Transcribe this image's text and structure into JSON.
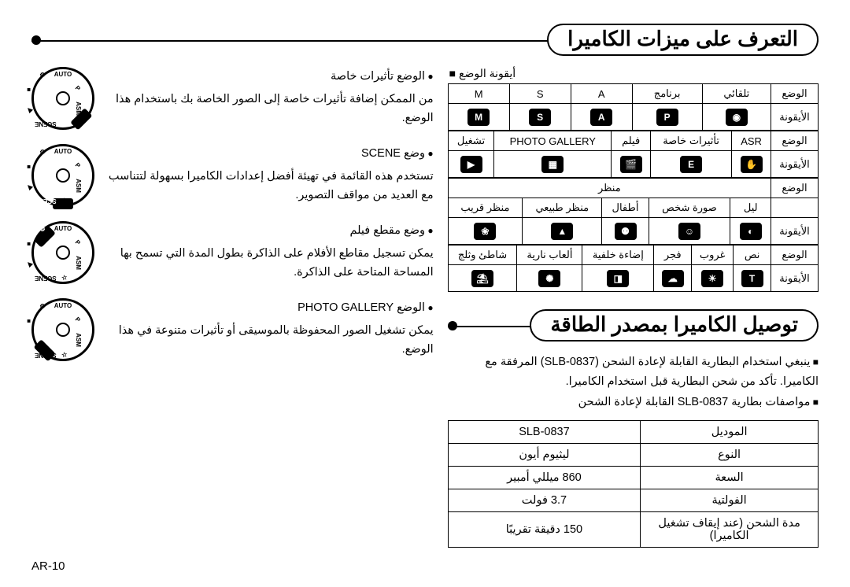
{
  "page_number": "AR-10",
  "section1": {
    "title": "التعرف على ميزات الكاميرا",
    "ref_label": "أيقونة الوضع",
    "dial_labels": [
      "AUTO",
      "P",
      "ASM",
      "☆",
      "SCENE",
      "▶",
      "■",
      "⚙"
    ],
    "modes": [
      {
        "title": "الوضع تأثيرات خاصة",
        "body": "من الممكن إضافة تأثيرات خاصة إلى الصور الخاصة بك باستخدام هذا الوضع.",
        "highlight_idx": 3
      },
      {
        "title": "وضع SCENE",
        "body": "تستخدم هذه القائمة في تهيئة أفضل إعدادات الكاميرا بسهولة لتتناسب مع العديد من مواقف التصوير.",
        "highlight_idx": 4
      },
      {
        "title": "وضع مقطع فيلم",
        "body": "يمكن تسجيل مقاطع الأفلام على الذاكرة بطول المدة التي تسمح بها المساحة المتاحة على الذاكرة.",
        "highlight_idx": 7
      },
      {
        "title": "الوضع PHOTO GALLERY",
        "body": "يمكن تشغيل الصور المحفوظة بالموسيقى أو تأثيرات متنوعة في هذا الوضع.",
        "highlight_idx": 5
      }
    ],
    "ref_table": {
      "row_labels": [
        "الوضع",
        "الأيقونة"
      ],
      "groups": [
        {
          "modes": [
            "تلقائي",
            "برنامج",
            "A",
            "S",
            "M"
          ],
          "icons": [
            "◉",
            "P",
            "A",
            "S",
            "M"
          ]
        },
        {
          "modes": [
            "ASR",
            "تأثيرات خاصة",
            "فيلم",
            "PHOTO GALLERY",
            "تشغيل"
          ],
          "icons": [
            "✋",
            "E",
            "🎬",
            "▦",
            "▶"
          ]
        },
        {
          "span_label": "منظر",
          "modes": [
            "ليل",
            "صورة شخص",
            "أطفال",
            "منظر طبيعي",
            "منظر قريب"
          ],
          "icons": [
            "◐",
            "☺",
            "⚉",
            "▲",
            "❀"
          ]
        },
        {
          "modes": [
            "نص",
            "غروب",
            "فجر",
            "إضاءة خلفية",
            "ألعاب نارية",
            "شاطئ وثلج"
          ],
          "icons": [
            "T",
            "☀",
            "☁",
            "◨",
            "✺",
            "⛱"
          ]
        }
      ]
    }
  },
  "section2": {
    "title": "توصيل الكاميرا بمصدر الطاقة",
    "notes": [
      "ينبغي استخدام البطارية القابلة لإعادة الشحن (SLB-0837) المرفقة مع الكاميرا. تأكد من شحن البطارية قبل استخدام الكاميرا.",
      "مواصفات بطارية SLB-0837 القابلة لإعادة الشحن"
    ],
    "spec": [
      {
        "k": "الموديل",
        "v": "SLB-0837"
      },
      {
        "k": "النوع",
        "v": "ليثيوم أيون"
      },
      {
        "k": "السعة",
        "v": "860 ميللي أمبير"
      },
      {
        "k": "الفولتية",
        "v": "3.7 فولت"
      },
      {
        "k": "مدة الشحن (عند إيقاف تشغيل الكاميرا)",
        "v": "150 دقيقة تقريبًا"
      }
    ]
  }
}
